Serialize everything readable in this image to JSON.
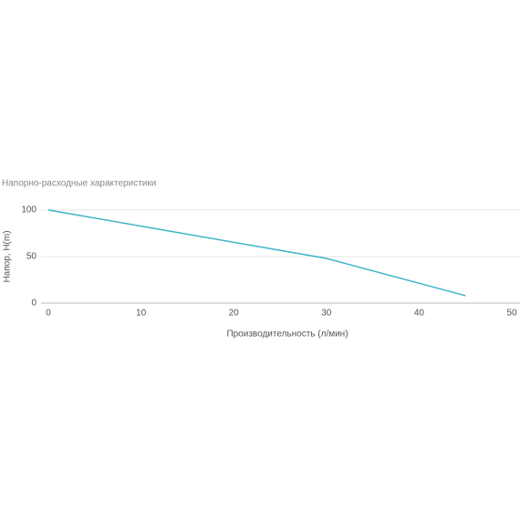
{
  "chart_data": {
    "type": "line",
    "title": "Напорно-расходные характеристики",
    "x_label": "Производительность (л/мин)",
    "y_label": "Напор, H(m)",
    "series": [
      {
        "color": "#3fb3c9",
        "x": [
          0,
          30,
          45
        ],
        "values": [
          100,
          48,
          8
        ]
      }
    ],
    "xlim": [
      0,
      50
    ],
    "xticks": [
      0,
      10,
      20,
      30,
      40,
      50
    ],
    "ylim": [
      0,
      100
    ],
    "yticks": [
      0,
      50,
      100
    ],
    "grid": true
  }
}
